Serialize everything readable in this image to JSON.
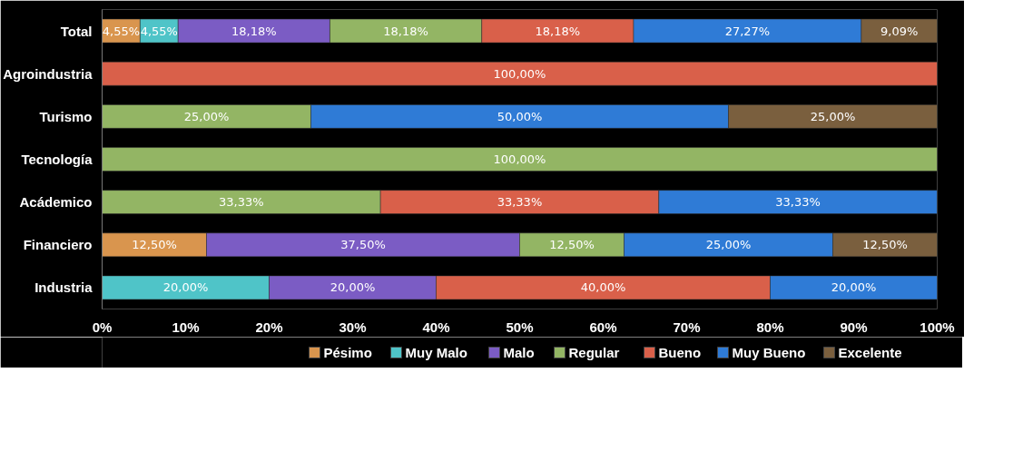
{
  "chart_data": {
    "type": "bar",
    "orientation": "horizontal",
    "stacked": true,
    "categories": [
      "Total",
      "Agroindustria",
      "Turismo",
      "Tecnología",
      "Acádemico",
      "Financiero",
      "Industria"
    ],
    "xlim": [
      0,
      100
    ],
    "xticks": [
      {
        "value": 0,
        "label": "0%"
      },
      {
        "value": 10,
        "label": "10%"
      },
      {
        "value": 20,
        "label": "20%"
      },
      {
        "value": 30,
        "label": "30%"
      },
      {
        "value": 40,
        "label": "40%"
      },
      {
        "value": 50,
        "label": "50%"
      },
      {
        "value": 60,
        "label": "60%"
      },
      {
        "value": 70,
        "label": "70%"
      },
      {
        "value": 80,
        "label": "80%"
      },
      {
        "value": 90,
        "label": "90%"
      },
      {
        "value": 100,
        "label": "100%"
      }
    ],
    "series": [
      {
        "name": "Pésimo",
        "color": "#d9954e",
        "values": [
          4.55,
          null,
          null,
          null,
          null,
          12.5,
          null
        ],
        "value_labels": [
          "4,55%",
          null,
          null,
          null,
          null,
          "12,50%",
          null
        ]
      },
      {
        "name": "Muy Malo",
        "color": "#4fc4c8",
        "values": [
          4.55,
          null,
          null,
          null,
          null,
          null,
          20
        ],
        "value_labels": [
          "4,55%",
          null,
          null,
          null,
          null,
          null,
          "20,00%"
        ]
      },
      {
        "name": "Malo",
        "color": "#7b5cc4",
        "values": [
          18.18,
          null,
          null,
          null,
          null,
          37.5,
          20
        ],
        "value_labels": [
          "18,18%",
          null,
          null,
          null,
          null,
          "37,50%",
          "20,00%"
        ]
      },
      {
        "name": "Regular",
        "color": "#93b564",
        "values": [
          18.18,
          null,
          25,
          100,
          33.33,
          12.5,
          null
        ],
        "value_labels": [
          "18,18%",
          null,
          "25,00%",
          "100,00%",
          "33,33%",
          "12,50%",
          null
        ]
      },
      {
        "name": "Bueno",
        "color": "#d9604a",
        "values": [
          18.18,
          100,
          null,
          null,
          33.33,
          null,
          40
        ],
        "value_labels": [
          "18,18%",
          "100,00%",
          null,
          null,
          "33,33%",
          null,
          "40,00%"
        ]
      },
      {
        "name": "Muy Bueno",
        "color": "#2f7bd6",
        "values": [
          27.27,
          null,
          50,
          null,
          33.33,
          25,
          20
        ],
        "value_labels": [
          "27,27%",
          null,
          "50,00%",
          null,
          "33,33%",
          "25,00%",
          "20,00%"
        ]
      },
      {
        "name": "Excelente",
        "color": "#7a5f3e",
        "values": [
          9.09,
          null,
          25,
          null,
          null,
          12.5,
          null
        ],
        "value_labels": [
          "9,09%",
          null,
          "25,00%",
          null,
          null,
          "12,50%",
          null
        ]
      }
    ],
    "legend": "bottom",
    "grid": false
  }
}
